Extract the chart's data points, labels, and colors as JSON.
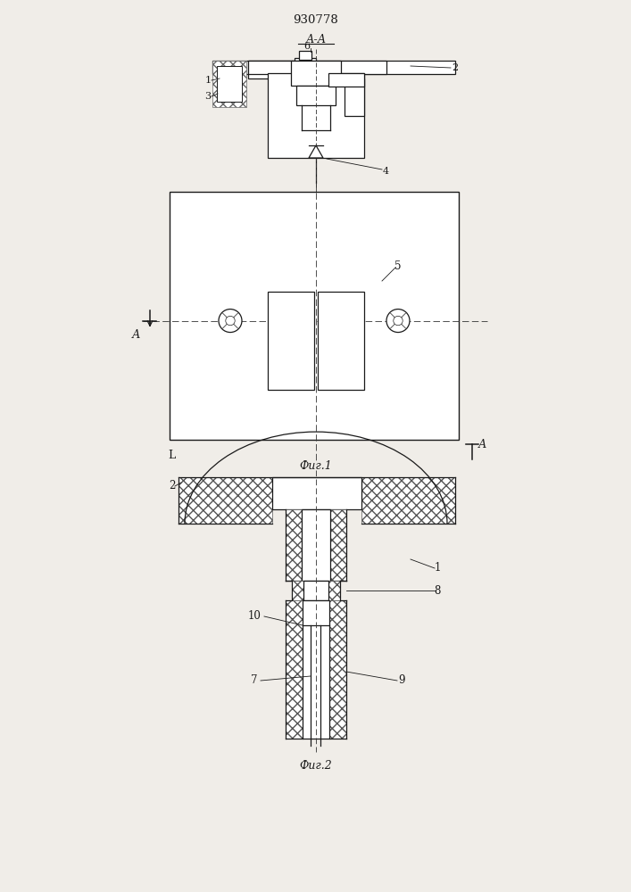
{
  "title": "930778",
  "fig1_label": "Фиг.1",
  "fig2_label": "Фиг.2",
  "section_label": "А-А",
  "bg": "#f0ede8",
  "lc": "#1a1a1a",
  "page_width": 7.07,
  "page_height": 10.0
}
